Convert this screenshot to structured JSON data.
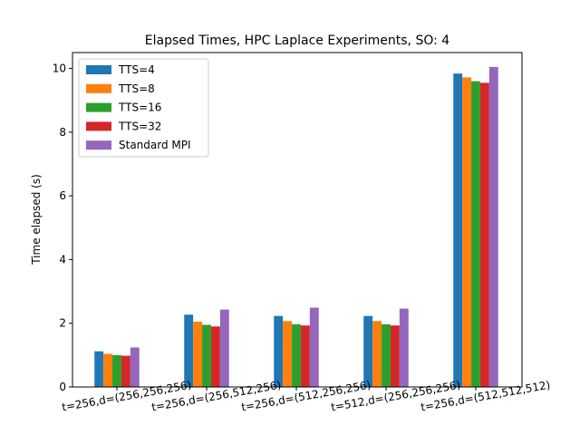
{
  "chart_data": {
    "type": "bar",
    "title": "Elapsed Times, HPC Laplace Experiments, SO: 4",
    "xlabel": "",
    "ylabel": "Time elapsed (s)",
    "ylim": [
      0,
      10.5
    ],
    "yticks": [
      0,
      2,
      4,
      6,
      8,
      10
    ],
    "grid": false,
    "legend_position": "top-left",
    "categories": [
      "t=256,d=(256,256,256)",
      "t=256,d=(256,512,256)",
      "t=256,d=(512,256,256)",
      "t=512,d=(256,256,256)",
      "t=256,d=(512,512,512)"
    ],
    "series": [
      {
        "name": "TTS=4",
        "color": "#1f77b4",
        "values": [
          1.12,
          2.27,
          2.23,
          2.23,
          9.84
        ]
      },
      {
        "name": "TTS=8",
        "color": "#ff7f0e",
        "values": [
          1.04,
          2.05,
          2.07,
          2.07,
          9.72
        ]
      },
      {
        "name": "TTS=16",
        "color": "#2ca02c",
        "values": [
          1.0,
          1.95,
          1.97,
          1.97,
          9.6
        ]
      },
      {
        "name": "TTS=32",
        "color": "#d62728",
        "values": [
          0.98,
          1.9,
          1.93,
          1.93,
          9.55
        ]
      },
      {
        "name": "Standard MPI",
        "color": "#9467bd",
        "values": [
          1.24,
          2.43,
          2.49,
          2.46,
          10.05
        ]
      }
    ]
  }
}
